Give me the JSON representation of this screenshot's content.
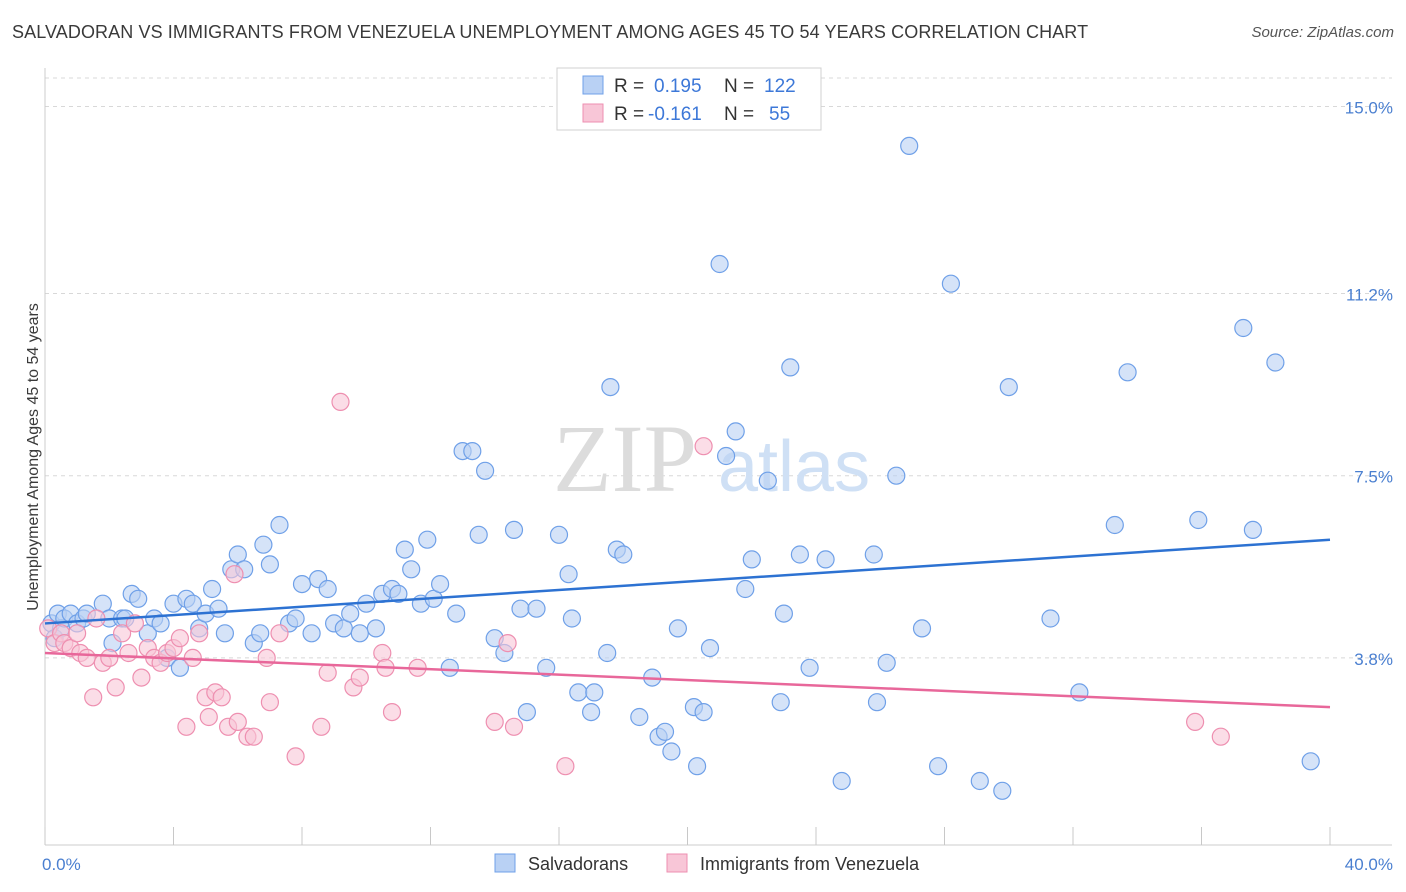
{
  "title": "SALVADORAN VS IMMIGRANTS FROM VENEZUELA UNEMPLOYMENT AMONG AGES 45 TO 54 YEARS CORRELATION CHART",
  "source": "Source: ZipAtlas.com",
  "watermark": {
    "zip": "ZIP",
    "atlas": "atlas"
  },
  "colors": {
    "blue": "#6fa0e8",
    "blue_fill": "#b9d1f4",
    "blue_line": "#2d72d2",
    "pink": "#ee8fb0",
    "pink_fill": "#f8c6d7",
    "pink_line": "#e8679a",
    "tick": "#4a7fd0",
    "grid": "#d8d8d8"
  },
  "legend": {
    "row1": {
      "r_label": "R =",
      "r_value": "0.195",
      "n_label": "N =",
      "n_value": "122"
    },
    "row2": {
      "r_label": "R =",
      "r_value": "-0.161",
      "n_label": "N =",
      "n_value": "55"
    }
  },
  "chart_data": {
    "type": "scatter",
    "ylabel": "Unemployment Among Ages 45 to 54 years",
    "xlim": [
      0,
      40
    ],
    "ylim": [
      0,
      15.7
    ],
    "x_tick_labels": [
      "0.0%",
      "40.0%"
    ],
    "y_ticks": [
      3.8,
      7.5,
      11.2,
      15.0
    ],
    "y_tick_labels": [
      "3.8%",
      "7.5%",
      "11.2%",
      "15.0%"
    ],
    "grid": true,
    "series": [
      {
        "name": "Salvadorans",
        "color": "#6fa0e8",
        "trend": {
          "x": [
            0,
            40
          ],
          "y": [
            4.5,
            6.2
          ]
        },
        "points": [
          [
            0.2,
            4.5
          ],
          [
            0.3,
            4.2
          ],
          [
            0.4,
            4.7
          ],
          [
            0.5,
            4.4
          ],
          [
            0.6,
            4.6
          ],
          [
            0.8,
            4.7
          ],
          [
            1.0,
            4.5
          ],
          [
            1.2,
            4.6
          ],
          [
            1.3,
            4.7
          ],
          [
            1.8,
            4.9
          ],
          [
            2.0,
            4.6
          ],
          [
            2.1,
            4.1
          ],
          [
            2.4,
            4.6
          ],
          [
            2.5,
            4.6
          ],
          [
            2.7,
            5.1
          ],
          [
            2.9,
            5.0
          ],
          [
            3.2,
            4.3
          ],
          [
            3.4,
            4.6
          ],
          [
            3.6,
            4.5
          ],
          [
            3.8,
            3.8
          ],
          [
            4.0,
            4.9
          ],
          [
            4.2,
            3.6
          ],
          [
            4.4,
            5.0
          ],
          [
            4.6,
            4.9
          ],
          [
            4.8,
            4.4
          ],
          [
            5.0,
            4.7
          ],
          [
            5.2,
            5.2
          ],
          [
            5.4,
            4.8
          ],
          [
            5.6,
            4.3
          ],
          [
            5.8,
            5.6
          ],
          [
            6.0,
            5.9
          ],
          [
            6.2,
            5.6
          ],
          [
            6.5,
            4.1
          ],
          [
            6.7,
            4.3
          ],
          [
            6.8,
            6.1
          ],
          [
            7.0,
            5.7
          ],
          [
            7.3,
            6.5
          ],
          [
            7.6,
            4.5
          ],
          [
            7.8,
            4.6
          ],
          [
            8.0,
            5.3
          ],
          [
            8.3,
            4.3
          ],
          [
            8.5,
            5.4
          ],
          [
            8.8,
            5.2
          ],
          [
            9.0,
            4.5
          ],
          [
            9.3,
            4.4
          ],
          [
            9.5,
            4.7
          ],
          [
            9.8,
            4.3
          ],
          [
            10.0,
            4.9
          ],
          [
            10.3,
            4.4
          ],
          [
            10.5,
            5.1
          ],
          [
            10.8,
            5.2
          ],
          [
            11.0,
            5.1
          ],
          [
            11.2,
            6.0
          ],
          [
            11.4,
            5.6
          ],
          [
            11.7,
            4.9
          ],
          [
            11.9,
            6.2
          ],
          [
            12.1,
            5.0
          ],
          [
            12.3,
            5.3
          ],
          [
            12.6,
            3.6
          ],
          [
            12.8,
            4.7
          ],
          [
            13.0,
            8.0
          ],
          [
            13.3,
            8.0
          ],
          [
            13.5,
            6.3
          ],
          [
            13.7,
            7.6
          ],
          [
            14.0,
            4.2
          ],
          [
            14.3,
            3.9
          ],
          [
            14.6,
            6.4
          ],
          [
            14.8,
            4.8
          ],
          [
            15.0,
            2.7
          ],
          [
            15.3,
            4.8
          ],
          [
            15.6,
            3.6
          ],
          [
            16.0,
            6.3
          ],
          [
            16.3,
            5.5
          ],
          [
            16.4,
            4.6
          ],
          [
            16.6,
            3.1
          ],
          [
            17.0,
            2.7
          ],
          [
            17.1,
            3.1
          ],
          [
            17.5,
            3.9
          ],
          [
            17.6,
            9.3
          ],
          [
            17.8,
            6.0
          ],
          [
            18.0,
            5.9
          ],
          [
            18.5,
            2.6
          ],
          [
            18.9,
            3.4
          ],
          [
            19.1,
            2.2
          ],
          [
            19.3,
            2.3
          ],
          [
            19.5,
            1.9
          ],
          [
            19.7,
            4.4
          ],
          [
            20.2,
            2.8
          ],
          [
            20.3,
            1.6
          ],
          [
            20.5,
            2.7
          ],
          [
            20.7,
            4.0
          ],
          [
            21.0,
            11.8
          ],
          [
            21.2,
            7.9
          ],
          [
            21.5,
            8.4
          ],
          [
            21.8,
            5.2
          ],
          [
            22.0,
            5.8
          ],
          [
            22.5,
            7.4
          ],
          [
            23.0,
            4.7
          ],
          [
            22.9,
            2.9
          ],
          [
            23.2,
            9.7
          ],
          [
            23.8,
            3.6
          ],
          [
            23.5,
            5.9
          ],
          [
            24.3,
            5.8
          ],
          [
            24.8,
            1.3
          ],
          [
            25.8,
            5.9
          ],
          [
            25.9,
            2.9
          ],
          [
            26.2,
            3.7
          ],
          [
            26.5,
            7.5
          ],
          [
            26.9,
            14.2
          ],
          [
            27.3,
            4.4
          ],
          [
            27.8,
            1.6
          ],
          [
            28.2,
            11.4
          ],
          [
            29.1,
            1.3
          ],
          [
            29.8,
            1.1
          ],
          [
            30.0,
            9.3
          ],
          [
            31.3,
            4.6
          ],
          [
            32.2,
            3.1
          ],
          [
            33.3,
            6.5
          ],
          [
            33.7,
            9.6
          ],
          [
            35.9,
            6.6
          ],
          [
            37.3,
            10.5
          ],
          [
            37.6,
            6.4
          ],
          [
            38.3,
            9.8
          ],
          [
            39.4,
            1.7
          ]
        ]
      },
      {
        "name": "Immigrants from Venezuela",
        "color": "#ee8fb0",
        "trend": {
          "x": [
            0,
            40
          ],
          "y": [
            3.9,
            2.8
          ]
        },
        "points": [
          [
            0.1,
            4.4
          ],
          [
            0.3,
            4.1
          ],
          [
            0.5,
            4.3
          ],
          [
            0.6,
            4.1
          ],
          [
            0.8,
            4.0
          ],
          [
            1.0,
            4.3
          ],
          [
            1.1,
            3.9
          ],
          [
            1.3,
            3.8
          ],
          [
            1.5,
            3.0
          ],
          [
            1.6,
            4.6
          ],
          [
            1.8,
            3.7
          ],
          [
            2.0,
            3.8
          ],
          [
            2.2,
            3.2
          ],
          [
            2.4,
            4.3
          ],
          [
            2.6,
            3.9
          ],
          [
            2.8,
            4.5
          ],
          [
            3.0,
            3.4
          ],
          [
            3.2,
            4.0
          ],
          [
            3.4,
            3.8
          ],
          [
            3.6,
            3.7
          ],
          [
            3.8,
            3.9
          ],
          [
            4.0,
            4.0
          ],
          [
            4.2,
            4.2
          ],
          [
            4.4,
            2.4
          ],
          [
            4.6,
            3.8
          ],
          [
            4.8,
            4.3
          ],
          [
            5.0,
            3.0
          ],
          [
            5.1,
            2.6
          ],
          [
            5.3,
            3.1
          ],
          [
            5.5,
            3.0
          ],
          [
            5.7,
            2.4
          ],
          [
            5.9,
            5.5
          ],
          [
            6.0,
            2.5
          ],
          [
            6.3,
            2.2
          ],
          [
            6.5,
            2.2
          ],
          [
            6.9,
            3.8
          ],
          [
            7.0,
            2.9
          ],
          [
            7.3,
            4.3
          ],
          [
            7.8,
            1.8
          ],
          [
            8.6,
            2.4
          ],
          [
            8.8,
            3.5
          ],
          [
            9.2,
            9.0
          ],
          [
            9.6,
            3.2
          ],
          [
            9.8,
            3.4
          ],
          [
            10.5,
            3.9
          ],
          [
            10.6,
            3.6
          ],
          [
            10.8,
            2.7
          ],
          [
            11.6,
            3.6
          ],
          [
            14.0,
            2.5
          ],
          [
            14.4,
            4.1
          ],
          [
            14.6,
            2.4
          ],
          [
            16.2,
            1.6
          ],
          [
            20.5,
            8.1
          ],
          [
            35.8,
            2.5
          ],
          [
            36.6,
            2.2
          ]
        ]
      }
    ]
  },
  "bottom_legend": {
    "items": [
      "Salvadorans",
      "Immigrants from Venezuela"
    ]
  }
}
